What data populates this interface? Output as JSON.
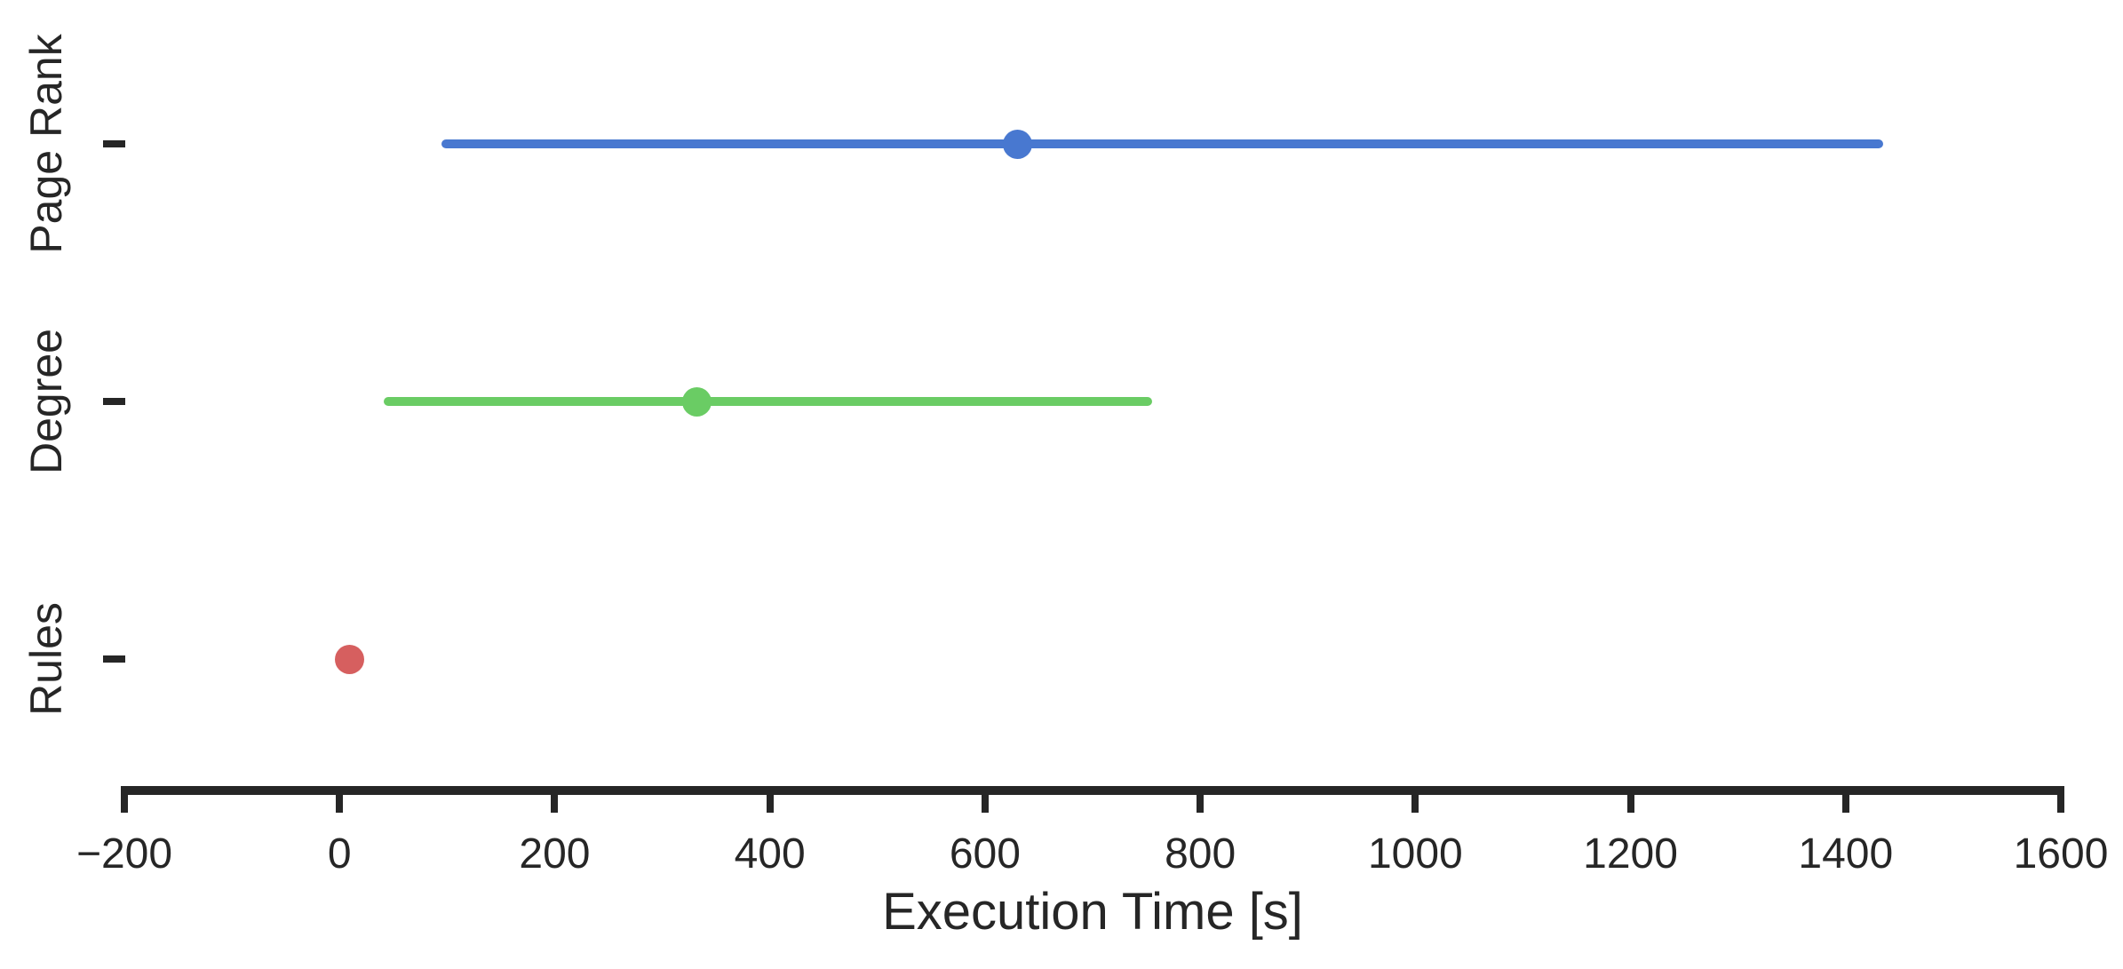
{
  "chart_data": {
    "type": "scatter",
    "subtype": "point-plot-with-error-bars",
    "orientation": "horizontal",
    "title": "",
    "xlabel": "Execution Time [s]",
    "ylabel": "",
    "xlim": [
      -200,
      1600
    ],
    "xticks": [
      -200,
      0,
      200,
      400,
      600,
      800,
      1000,
      1200,
      1400,
      1600
    ],
    "xtick_labels": [
      "−200",
      "0",
      "200",
      "400",
      "600",
      "800",
      "1000",
      "1200",
      "1400",
      "1600"
    ],
    "grid": false,
    "legend": false,
    "categories": [
      "Page Rank",
      "Degree",
      "Rules"
    ],
    "series": [
      {
        "name": "Execution Time [s]",
        "points": [
          {
            "category": "Page Rank",
            "value": 630,
            "ci_low": 95,
            "ci_high": 1435,
            "color": "#4878D0"
          },
          {
            "category": "Degree",
            "value": 332,
            "ci_low": 41,
            "ci_high": 755,
            "color": "#6ACC64"
          },
          {
            "category": "Rules",
            "value": 9,
            "ci_low": null,
            "ci_high": null,
            "color": "#D65F5F"
          }
        ]
      }
    ]
  },
  "style": {
    "background": "#ffffff",
    "text_color": "#262626",
    "axis_color": "#262626"
  }
}
